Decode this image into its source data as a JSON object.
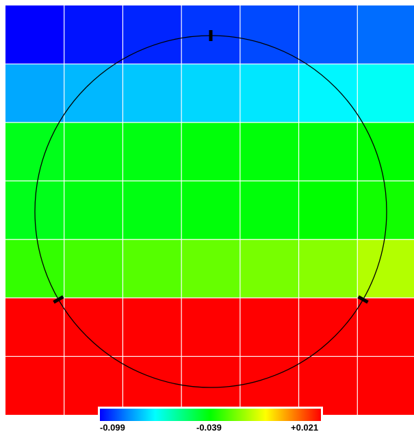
{
  "chart_data": {
    "type": "heatmap",
    "rows": 7,
    "cols": 7,
    "values": [
      [
        -0.099,
        -0.097,
        -0.095,
        -0.093,
        -0.091,
        -0.089,
        -0.087
      ],
      [
        -0.08,
        -0.078,
        -0.076,
        -0.074,
        -0.072,
        -0.07,
        -0.068
      ],
      [
        -0.042,
        -0.041,
        -0.041,
        -0.04,
        -0.04,
        -0.04,
        -0.039
      ],
      [
        -0.042,
        -0.041,
        -0.041,
        -0.04,
        -0.04,
        -0.039,
        -0.037
      ],
      [
        -0.033,
        -0.031,
        -0.029,
        -0.027,
        -0.025,
        -0.023,
        -0.018
      ],
      [
        0.021,
        0.021,
        0.021,
        0.021,
        0.021,
        0.021,
        0.021
      ],
      [
        0.021,
        0.021,
        0.021,
        0.021,
        0.021,
        0.021,
        0.021
      ]
    ],
    "colorbar": {
      "min": -0.099,
      "mid": -0.039,
      "max": 0.021,
      "tick_labels": [
        "-0.099",
        "-0.039",
        "+0.021"
      ],
      "colors": [
        "#0000ff",
        "#0088ff",
        "#00ffff",
        "#00ff80",
        "#00ff00",
        "#80ff00",
        "#ffff00",
        "#ff8000",
        "#ff0000"
      ]
    },
    "overlay": {
      "circle": true,
      "markers": [
        "top",
        "lower-left",
        "lower-right"
      ]
    },
    "grid": true,
    "grid_color": "#ffffff"
  }
}
